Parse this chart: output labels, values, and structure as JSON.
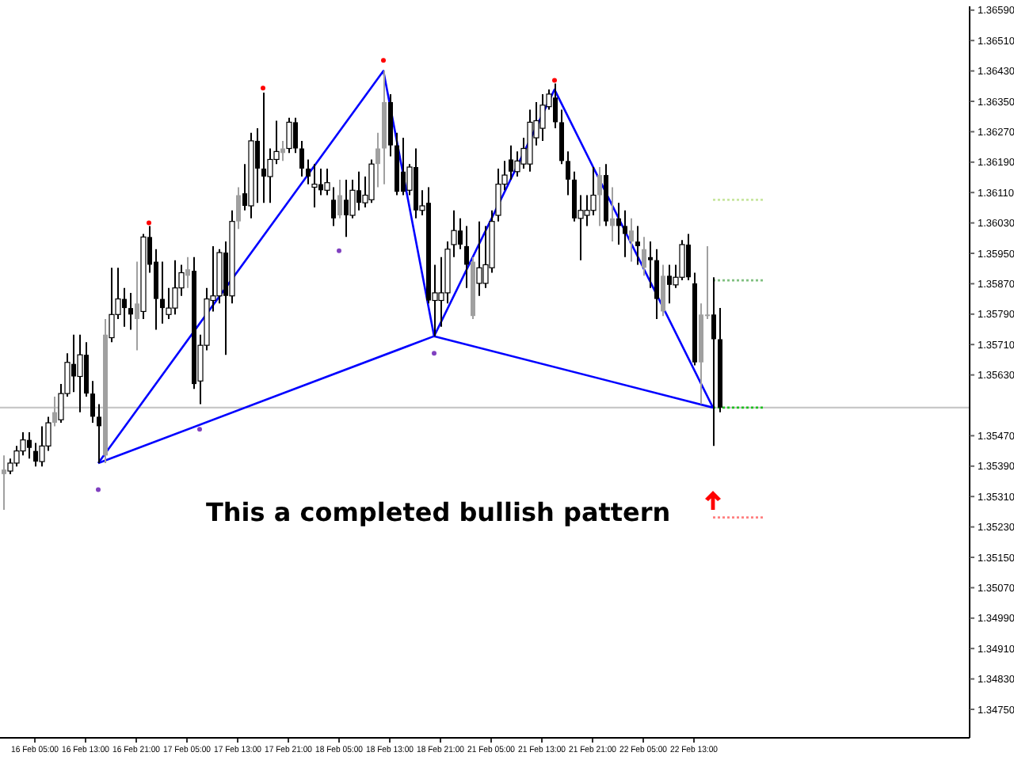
{
  "chart_data": {
    "type": "candlestick",
    "categories": [
      null,
      null,
      null,
      null,
      null,
      "16 Feb 05:00",
      null,
      null,
      null,
      null,
      null,
      null,
      null,
      "16 Feb 13:00",
      null,
      null,
      null,
      null,
      null,
      null,
      null,
      "16 Feb 21:00",
      null,
      null,
      null,
      null,
      null,
      null,
      null,
      "17 Feb 05:00",
      null,
      null,
      null,
      null,
      null,
      null,
      null,
      "17 Feb 13:00",
      null,
      null,
      null,
      null,
      null,
      null,
      null,
      "17 Feb 21:00",
      null,
      null,
      null,
      null,
      null,
      null,
      null,
      "18 Feb 05:00",
      null,
      null,
      null,
      null,
      null,
      null,
      null,
      "18 Feb 13:00",
      null,
      null,
      null,
      null,
      null,
      null,
      null,
      "18 Feb 21:00",
      null,
      null,
      null,
      null,
      null,
      null,
      null,
      "21 Feb 05:00",
      null,
      null,
      null,
      null,
      null,
      null,
      null,
      "21 Feb 13:00",
      null,
      null,
      null,
      null,
      null,
      null,
      null,
      "21 Feb 21:00",
      null,
      null,
      null,
      null,
      null,
      null,
      null,
      "22 Feb 05:00",
      null,
      null,
      null,
      null,
      null,
      null,
      null,
      "22 Feb 13:00",
      null,
      null,
      null,
      null,
      null,
      null,
      null,
      null,
      null,
      null,
      null,
      null,
      null,
      null,
      null,
      null,
      null,
      null,
      null,
      null,
      null,
      null,
      null,
      null,
      null,
      null,
      null,
      null,
      null,
      null,
      null,
      null,
      null,
      null,
      null,
      null,
      null,
      null,
      null,
      null,
      null,
      null,
      null
    ],
    "ohlc": [
      [
        1.35369,
        1.35418,
        1.35275,
        1.35381
      ],
      [
        1.35377,
        1.3541,
        1.35369,
        1.35398
      ],
      [
        1.35398,
        1.35443,
        1.35389,
        1.3543
      ],
      [
        1.3543,
        1.35479,
        1.35418,
        1.35459
      ],
      [
        1.35459,
        1.35479,
        1.3541,
        1.35438
      ],
      [
        1.3543,
        1.35451,
        1.35389,
        1.35402
      ],
      [
        1.35402,
        1.35495,
        1.35389,
        1.35443
      ],
      [
        1.35443,
        1.3552,
        1.3543,
        1.35504
      ],
      [
        1.35504,
        1.35573,
        1.35495,
        1.35532
      ],
      [
        1.35512,
        1.35606,
        1.35504,
        1.35581
      ],
      [
        1.35581,
        1.35687,
        1.35573,
        1.35663
      ],
      [
        1.35659,
        1.35736,
        1.35585,
        1.35626
      ],
      [
        1.35626,
        1.35736,
        1.35532,
        1.35683
      ],
      [
        1.35683,
        1.35716,
        1.35573,
        1.35581
      ],
      [
        1.35581,
        1.35614,
        1.35504,
        1.3552
      ],
      [
        1.3552,
        1.35553,
        1.35398,
        1.35495
      ],
      [
        1.35418,
        1.35777,
        1.35398,
        1.35736
      ],
      [
        1.35728,
        1.35912,
        1.35716,
        1.35789
      ],
      [
        1.35789,
        1.35912,
        1.35777,
        1.3583
      ],
      [
        1.3583,
        1.35859,
        1.35757,
        1.35806
      ],
      [
        1.35806,
        1.35846,
        1.35749,
        1.35789
      ],
      [
        1.35777,
        1.35928,
        1.35695,
        1.35818
      ],
      [
        1.35797,
        1.36001,
        1.35777,
        1.35993
      ],
      [
        1.35993,
        1.36022,
        1.35899,
        1.3592
      ],
      [
        1.35928,
        1.35961,
        1.35749,
        1.3583
      ],
      [
        1.3583,
        1.35928,
        1.35765,
        1.35806
      ],
      [
        1.35789,
        1.35859,
        1.35777,
        1.35806
      ],
      [
        1.35806,
        1.35932,
        1.35789,
        1.35859
      ],
      [
        1.35859,
        1.3592,
        1.35838,
        1.35899
      ],
      [
        1.35891,
        1.3594,
        1.35859,
        1.35908
      ],
      [
        1.35904,
        1.3594,
        1.35593,
        1.35606
      ],
      [
        1.35614,
        1.35736,
        1.35553,
        1.35708
      ],
      [
        1.35708,
        1.35859,
        1.35695,
        1.3583
      ],
      [
        1.35826,
        1.35969,
        1.35797,
        1.35838
      ],
      [
        1.35838,
        1.35961,
        1.35818,
        1.35952
      ],
      [
        1.35952,
        1.35981,
        1.35683,
        1.35838
      ],
      [
        1.35838,
        1.36063,
        1.35818,
        1.36034
      ],
      [
        1.36034,
        1.36124,
        1.36014,
        1.36103
      ],
      [
        1.36108,
        1.36185,
        1.36063,
        1.36075
      ],
      [
        1.36075,
        1.36267,
        1.36042,
        1.36246
      ],
      [
        1.36246,
        1.36279,
        1.36083,
        1.36173
      ],
      [
        1.36173,
        1.36373,
        1.36083,
        1.36152
      ],
      [
        1.36152,
        1.36226,
        1.36083,
        1.36197
      ],
      [
        1.36197,
        1.36299,
        1.36185,
        1.36218
      ],
      [
        1.36214,
        1.36246,
        1.36193,
        1.36226
      ],
      [
        1.36226,
        1.36307,
        1.36214,
        1.36295
      ],
      [
        1.36295,
        1.36307,
        1.36214,
        1.36226
      ],
      [
        1.36226,
        1.36246,
        1.36152,
        1.36173
      ],
      [
        1.36173,
        1.36197,
        1.36132,
        1.36152
      ],
      [
        1.36124,
        1.36185,
        1.36071,
        1.36132
      ],
      [
        1.36132,
        1.36173,
        1.36103,
        1.36116
      ],
      [
        1.36116,
        1.36173,
        1.36103,
        1.36136
      ],
      [
        1.36091,
        1.36124,
        1.36022,
        1.36042
      ],
      [
        1.3605,
        1.36144,
        1.36042,
        1.36103
      ],
      [
        1.36091,
        1.36144,
        1.35993,
        1.3605
      ],
      [
        1.3605,
        1.36144,
        1.36042,
        1.36116
      ],
      [
        1.36116,
        1.36165,
        1.36063,
        1.36083
      ],
      [
        1.36083,
        1.36152,
        1.36071,
        1.36103
      ],
      [
        1.36091,
        1.36197,
        1.36083,
        1.36185
      ],
      [
        1.36185,
        1.36267,
        1.36124,
        1.36226
      ],
      [
        1.36226,
        1.3643,
        1.36132,
        1.36348
      ],
      [
        1.36348,
        1.36369,
        1.36205,
        1.36234
      ],
      [
        1.36234,
        1.36267,
        1.36103,
        1.36112
      ],
      [
        1.36165,
        1.36254,
        1.36103,
        1.36112
      ],
      [
        1.36116,
        1.36185,
        1.36103,
        1.36177
      ],
      [
        1.36177,
        1.36226,
        1.36042,
        1.36063
      ],
      [
        1.36063,
        1.36116,
        1.3605,
        1.36075
      ],
      [
        1.36083,
        1.36124,
        1.35818,
        1.35826
      ],
      [
        1.35826,
        1.3592,
        1.35732,
        1.35846
      ],
      [
        1.35826,
        1.3594,
        1.35757,
        1.35846
      ],
      [
        1.35846,
        1.35981,
        1.35818,
        1.35961
      ],
      [
        1.35973,
        1.36063,
        1.3594,
        1.3601
      ],
      [
        1.3601,
        1.36042,
        1.35961,
        1.35973
      ],
      [
        1.35969,
        1.36022,
        1.35859,
        1.3592
      ],
      [
        1.35785,
        1.3594,
        1.35777,
        1.35928
      ],
      [
        1.35871,
        1.36034,
        1.35838,
        1.35912
      ],
      [
        1.35871,
        1.36022,
        1.35859,
        1.3592
      ],
      [
        1.35912,
        1.36063,
        1.35899,
        1.36034
      ],
      [
        1.3605,
        1.36173,
        1.36034,
        1.36132
      ],
      [
        1.36132,
        1.36193,
        1.36116,
        1.36156
      ],
      [
        1.36197,
        1.36234,
        1.36144,
        1.36165
      ],
      [
        1.36165,
        1.36218,
        1.36152,
        1.36193
      ],
      [
        1.36185,
        1.36254,
        1.36173,
        1.36226
      ],
      [
        1.36185,
        1.36328,
        1.36165,
        1.36295
      ],
      [
        1.36254,
        1.36348,
        1.36234,
        1.36299
      ],
      [
        1.36279,
        1.36369,
        1.36246,
        1.3634
      ],
      [
        1.36336,
        1.36381,
        1.36328,
        1.36369
      ],
      [
        1.3636,
        1.36397,
        1.36279,
        1.36295
      ],
      [
        1.36295,
        1.36328,
        1.36185,
        1.36193
      ],
      [
        1.36193,
        1.36218,
        1.36103,
        1.36144
      ],
      [
        1.36144,
        1.36165,
        1.36034,
        1.36042
      ],
      [
        1.36042,
        1.36103,
        1.35932,
        1.36063
      ],
      [
        1.3605,
        1.36103,
        1.36022,
        1.36063
      ],
      [
        1.36063,
        1.36177,
        1.3605,
        1.36103
      ],
      [
        1.36103,
        1.36177,
        1.36022,
        1.36156
      ],
      [
        1.36156,
        1.36185,
        1.36022,
        1.36034
      ],
      [
        1.36022,
        1.36124,
        1.35981,
        1.36042
      ],
      [
        1.36042,
        1.36083,
        1.35973,
        1.36022
      ],
      [
        1.36022,
        1.36063,
        1.3594,
        1.36001
      ],
      [
        1.35981,
        1.36042,
        1.35928,
        1.3601
      ],
      [
        1.35981,
        1.36022,
        1.3592,
        1.35969
      ],
      [
        1.35912,
        1.35993,
        1.35891,
        1.35961
      ],
      [
        1.3594,
        1.35981,
        1.35859,
        1.35932
      ],
      [
        1.35932,
        1.35961,
        1.35777,
        1.3583
      ],
      [
        1.35797,
        1.3592,
        1.35785,
        1.35891
      ],
      [
        1.35891,
        1.3592,
        1.35818,
        1.35867
      ],
      [
        1.35867,
        1.3592,
        1.35859,
        1.35887
      ],
      [
        1.35887,
        1.35985,
        1.35879,
        1.35973
      ],
      [
        1.35973,
        1.36001,
        1.35879,
        1.35887
      ],
      [
        1.35871,
        1.35899,
        1.35655,
        1.35663
      ],
      [
        1.35663,
        1.35818,
        1.35553,
        1.35789
      ],
      [
        1.35785,
        1.35969,
        1.35777,
        1.35789
      ],
      [
        1.35789,
        1.35887,
        1.35443,
        1.35724
      ],
      [
        1.35724,
        1.35806,
        1.35532,
        1.35544
      ],
      null,
      null,
      null,
      null,
      null,
      null,
      null,
      null,
      null,
      null,
      null,
      null,
      null,
      null,
      null,
      null,
      null,
      null,
      null,
      null,
      null,
      null,
      null,
      null,
      null,
      null,
      null,
      null,
      null,
      null,
      null,
      null,
      null,
      null,
      null,
      null,
      null,
      null,
      null
    ],
    "colors": [
      "#a0a0a0",
      "#ffffff",
      "#ffffff",
      "#ffffff",
      "#000000",
      "#000000",
      "#ffffff",
      "#ffffff",
      "#a0a0a0",
      "#ffffff",
      "#ffffff",
      "#000000",
      "#ffffff",
      "#000000",
      "#000000",
      "#000000",
      "#a0a0a0",
      "#ffffff",
      "#ffffff",
      "#000000",
      "#000000",
      "#a0a0a0",
      "#ffffff",
      "#000000",
      "#000000",
      "#000000",
      "#ffffff",
      "#ffffff",
      "#ffffff",
      "#a0a0a0",
      "#000000",
      "#ffffff",
      "#ffffff",
      "#ffffff",
      "#ffffff",
      "#000000",
      "#ffffff",
      "#a0a0a0",
      "#000000",
      "#ffffff",
      "#000000",
      "#000000",
      "#ffffff",
      "#ffffff",
      "#a0a0a0",
      "#ffffff",
      "#000000",
      "#000000",
      "#000000",
      "#ffffff",
      "#000000",
      "#ffffff",
      "#000000",
      "#a0a0a0",
      "#000000",
      "#ffffff",
      "#000000",
      "#ffffff",
      "#ffffff",
      "#a0a0a0",
      "#a0a0a0",
      "#000000",
      "#000000",
      "#000000",
      "#ffffff",
      "#000000",
      "#ffffff",
      "#000000",
      "#ffffff",
      "#ffffff",
      "#ffffff",
      "#ffffff",
      "#000000",
      "#000000",
      "#a0a0a0",
      "#ffffff",
      "#ffffff",
      "#ffffff",
      "#ffffff",
      "#ffffff",
      "#000000",
      "#ffffff",
      "#ffffff",
      "#ffffff",
      "#ffffff",
      "#ffffff",
      "#ffffff",
      "#000000",
      "#000000",
      "#000000",
      "#000000",
      "#ffffff",
      "#ffffff",
      "#ffffff",
      "#a0a0a0",
      "#000000",
      "#a0a0a0",
      "#000000",
      "#000000",
      "#a0a0a0",
      "#000000",
      "#a0a0a0",
      "#000000",
      "#000000",
      "#a0a0a0",
      "#000000",
      "#ffffff",
      "#ffffff",
      "#000000",
      "#000000",
      "#a0a0a0",
      "#a0a0a0",
      "#000000",
      "#000000",
      null,
      null,
      null,
      null,
      null,
      null,
      null,
      null,
      null,
      null,
      null,
      null,
      null,
      null,
      null,
      null,
      null,
      null,
      null,
      null,
      null,
      null,
      null,
      null,
      null,
      null,
      null,
      null,
      null,
      null,
      null,
      null,
      null,
      null,
      null,
      null,
      null,
      null,
      null
    ],
    "series": [
      {
        "type": "line",
        "color": "#0000ff",
        "values": [
          null,
          null,
          null,
          null,
          null,
          null,
          null,
          null,
          null,
          null,
          null,
          null,
          null,
          null,
          null,
          1.35398,
          null,
          null,
          null,
          null,
          null,
          null,
          null,
          null,
          null,
          null,
          null,
          null,
          null,
          null,
          null,
          null,
          null,
          null,
          null,
          null,
          null,
          null,
          null,
          null,
          null,
          null,
          null,
          null,
          null,
          null,
          null,
          null,
          null,
          null,
          null,
          null,
          null,
          null,
          null,
          null,
          null,
          null,
          null,
          null,
          1.3643,
          null,
          null,
          null,
          null,
          null,
          null,
          null,
          1.35732,
          null,
          null,
          null,
          null,
          null,
          null,
          null,
          null,
          null,
          null,
          null,
          null,
          null,
          null,
          null,
          null,
          null,
          null,
          1.36381,
          null,
          null,
          null,
          null,
          null,
          null,
          null,
          null,
          null,
          null,
          null,
          null,
          null,
          null,
          null,
          null,
          null,
          null,
          null,
          null,
          null,
          null,
          null,
          null,
          1.35544,
          null,
          null,
          null,
          null,
          null,
          null,
          null,
          null,
          null,
          null,
          null,
          null,
          null,
          null,
          null,
          null,
          null,
          null,
          null,
          null,
          null,
          null,
          null,
          null,
          null,
          null,
          null,
          null,
          null,
          null,
          null,
          null,
          null,
          null,
          null,
          null,
          null,
          null,
          null,
          null
        ]
      },
      {
        "type": "line",
        "color": "#0000ff",
        "values": [
          null,
          null,
          null,
          null,
          null,
          null,
          null,
          null,
          null,
          null,
          null,
          null,
          null,
          null,
          null,
          1.35398,
          null,
          null,
          null,
          null,
          null,
          null,
          null,
          null,
          null,
          null,
          null,
          null,
          null,
          null,
          null,
          null,
          null,
          null,
          null,
          null,
          null,
          null,
          null,
          null,
          null,
          null,
          null,
          null,
          null,
          null,
          null,
          null,
          null,
          null,
          null,
          null,
          null,
          null,
          null,
          null,
          null,
          null,
          null,
          null,
          null,
          null,
          null,
          null,
          null,
          null,
          null,
          null,
          1.35732,
          null,
          null,
          null,
          null,
          null,
          null,
          null,
          null,
          null,
          null,
          null,
          null,
          null,
          null,
          null,
          null,
          null,
          null,
          null,
          null,
          null,
          null,
          null,
          null,
          null,
          null,
          null,
          null,
          null,
          null,
          null,
          null,
          null,
          null,
          null,
          null,
          null,
          null,
          null,
          null,
          null,
          null,
          null,
          1.35544,
          null,
          null,
          null,
          null,
          null,
          null,
          null,
          null,
          null,
          null,
          null,
          null,
          null,
          null,
          null,
          null,
          null,
          null,
          null,
          null,
          null,
          null,
          null,
          null,
          null,
          null,
          null,
          null,
          null,
          null,
          null,
          null,
          null,
          null,
          null,
          null,
          null,
          null,
          null,
          null
        ]
      },
      {
        "type": "scatter",
        "color": "#ff0000",
        "marker": "circle",
        "values": [
          null,
          null,
          null,
          null,
          null,
          null,
          null,
          null,
          null,
          null,
          null,
          null,
          null,
          null,
          null,
          null,
          null,
          null,
          null,
          null,
          null,
          null,
          null,
          1.3603,
          null,
          null,
          null,
          null,
          null,
          null,
          null,
          null,
          null,
          null,
          null,
          null,
          null,
          null,
          null,
          null,
          null,
          1.36385,
          null,
          null,
          null,
          null,
          null,
          null,
          null,
          null,
          null,
          null,
          null,
          null,
          null,
          null,
          null,
          null,
          null,
          null,
          1.36458,
          null,
          null,
          null,
          null,
          null,
          null,
          null,
          null,
          null,
          null,
          null,
          null,
          null,
          null,
          null,
          null,
          null,
          null,
          null,
          null,
          null,
          null,
          null,
          null,
          null,
          null,
          1.36405,
          null,
          null,
          null,
          null,
          null,
          null,
          null,
          null,
          null,
          null,
          null,
          null,
          null,
          null,
          null,
          null,
          null,
          null,
          null,
          null,
          null,
          null,
          null,
          null,
          null,
          null,
          null,
          null,
          null,
          null,
          null,
          null,
          null,
          null,
          null,
          null,
          null,
          null,
          null,
          null,
          null,
          null,
          null,
          null,
          null,
          null,
          null,
          null,
          null,
          null,
          null,
          null,
          null,
          null,
          null,
          null,
          null,
          null,
          null,
          null,
          null,
          null,
          null,
          null,
          null
        ]
      },
      {
        "type": "scatter",
        "color": "#8040c0",
        "marker": "circle",
        "values": [
          null,
          null,
          null,
          null,
          null,
          null,
          null,
          null,
          null,
          null,
          null,
          null,
          null,
          null,
          null,
          1.35328,
          null,
          null,
          null,
          null,
          null,
          null,
          null,
          null,
          null,
          null,
          null,
          null,
          null,
          null,
          null,
          1.35487,
          null,
          null,
          null,
          null,
          null,
          null,
          null,
          null,
          null,
          null,
          null,
          null,
          null,
          null,
          null,
          null,
          null,
          null,
          null,
          null,
          null,
          1.35957,
          null,
          null,
          null,
          null,
          null,
          null,
          null,
          null,
          null,
          null,
          null,
          null,
          null,
          null,
          1.35687,
          null,
          null,
          null,
          null,
          null,
          null,
          null,
          null,
          null,
          null,
          null,
          null,
          null,
          null,
          null,
          null,
          null,
          null,
          null,
          null,
          null,
          null,
          null,
          null,
          null,
          null,
          null,
          null,
          null,
          null,
          null,
          null,
          null,
          null,
          null,
          null,
          null,
          null,
          null,
          null,
          null,
          null,
          null,
          null,
          null,
          null,
          null,
          null,
          null,
          null,
          null,
          null,
          null,
          null,
          null,
          null,
          null,
          null,
          null,
          null,
          null,
          null,
          null,
          null,
          null,
          null,
          null,
          null,
          null,
          null,
          null,
          null,
          null,
          null,
          null,
          null,
          null,
          null,
          null,
          null,
          null,
          null,
          null,
          null
        ]
      },
      {
        "type": "line",
        "color": "#c8e6a0",
        "line_style": "dotted",
        "values": [
          null,
          null,
          null,
          null,
          null,
          null,
          null,
          null,
          null,
          null,
          null,
          null,
          null,
          null,
          null,
          null,
          null,
          null,
          null,
          null,
          null,
          null,
          null,
          null,
          null,
          null,
          null,
          null,
          null,
          null,
          null,
          null,
          null,
          null,
          null,
          null,
          null,
          null,
          null,
          null,
          null,
          null,
          null,
          null,
          null,
          null,
          null,
          null,
          null,
          null,
          null,
          null,
          null,
          null,
          null,
          null,
          null,
          null,
          null,
          null,
          null,
          null,
          null,
          null,
          null,
          null,
          null,
          null,
          null,
          null,
          null,
          null,
          null,
          null,
          null,
          null,
          null,
          null,
          null,
          null,
          null,
          null,
          null,
          null,
          null,
          null,
          null,
          null,
          null,
          null,
          null,
          null,
          null,
          null,
          null,
          null,
          null,
          null,
          null,
          null,
          null,
          null,
          null,
          null,
          null,
          null,
          null,
          null,
          null,
          null,
          null,
          null,
          1.36091,
          1.36091,
          1.36091,
          1.36091,
          1.36091,
          1.36091,
          1.36091,
          1.36091,
          1.36091,
          null,
          null,
          null,
          null,
          null,
          null,
          null,
          null,
          null,
          null,
          null,
          null,
          null,
          null,
          null,
          null,
          null,
          null,
          null,
          null,
          null,
          null,
          null,
          null,
          null,
          null,
          null,
          null,
          null,
          null,
          null,
          null
        ]
      },
      {
        "type": "line",
        "color": "#80c080",
        "line_style": "dotted",
        "values": [
          null,
          null,
          null,
          null,
          null,
          null,
          null,
          null,
          null,
          null,
          null,
          null,
          null,
          null,
          null,
          null,
          null,
          null,
          null,
          null,
          null,
          null,
          null,
          null,
          null,
          null,
          null,
          null,
          null,
          null,
          null,
          null,
          null,
          null,
          null,
          null,
          null,
          null,
          null,
          null,
          null,
          null,
          null,
          null,
          null,
          null,
          null,
          null,
          null,
          null,
          null,
          null,
          null,
          null,
          null,
          null,
          null,
          null,
          null,
          null,
          null,
          null,
          null,
          null,
          null,
          null,
          null,
          null,
          null,
          null,
          null,
          null,
          null,
          null,
          null,
          null,
          null,
          null,
          null,
          null,
          null,
          null,
          null,
          null,
          null,
          null,
          null,
          null,
          null,
          null,
          null,
          null,
          null,
          null,
          null,
          null,
          null,
          null,
          null,
          null,
          null,
          null,
          null,
          null,
          null,
          null,
          null,
          null,
          null,
          null,
          null,
          null,
          1.35879,
          1.35879,
          1.35879,
          1.35879,
          1.35879,
          1.35879,
          1.35879,
          1.35879,
          1.35879,
          null,
          null,
          null,
          null,
          null,
          null,
          null,
          null,
          null,
          null,
          null,
          null,
          null,
          null,
          null,
          null,
          null,
          null,
          null,
          null,
          null,
          null,
          null,
          null,
          null,
          null,
          null,
          null,
          null,
          null,
          null,
          null
        ]
      },
      {
        "type": "line",
        "color": "#20c020",
        "line_style": "dotted",
        "values": [
          null,
          null,
          null,
          null,
          null,
          null,
          null,
          null,
          null,
          null,
          null,
          null,
          null,
          null,
          null,
          null,
          null,
          null,
          null,
          null,
          null,
          null,
          null,
          null,
          null,
          null,
          null,
          null,
          null,
          null,
          null,
          null,
          null,
          null,
          null,
          null,
          null,
          null,
          null,
          null,
          null,
          null,
          null,
          null,
          null,
          null,
          null,
          null,
          null,
          null,
          null,
          null,
          null,
          null,
          null,
          null,
          null,
          null,
          null,
          null,
          null,
          null,
          null,
          null,
          null,
          null,
          null,
          null,
          null,
          null,
          null,
          null,
          null,
          null,
          null,
          null,
          null,
          null,
          null,
          null,
          null,
          null,
          null,
          null,
          null,
          null,
          null,
          null,
          null,
          null,
          null,
          null,
          null,
          null,
          null,
          null,
          null,
          null,
          null,
          null,
          null,
          null,
          null,
          null,
          null,
          null,
          null,
          null,
          null,
          null,
          null,
          null,
          1.35544,
          1.35544,
          1.35544,
          1.35544,
          1.35544,
          1.35544,
          1.35544,
          1.35544,
          1.35544,
          null,
          null,
          null,
          null,
          null,
          null,
          null,
          null,
          null,
          null,
          null,
          null,
          null,
          null,
          null,
          null,
          null,
          null,
          null,
          null,
          null,
          null,
          null,
          null,
          null,
          null,
          null,
          null,
          null,
          null,
          null,
          null
        ]
      },
      {
        "type": "line",
        "color": "#ff8080",
        "line_style": "dotted",
        "values": [
          null,
          null,
          null,
          null,
          null,
          null,
          null,
          null,
          null,
          null,
          null,
          null,
          null,
          null,
          null,
          null,
          null,
          null,
          null,
          null,
          null,
          null,
          null,
          null,
          null,
          null,
          null,
          null,
          null,
          null,
          null,
          null,
          null,
          null,
          null,
          null,
          null,
          null,
          null,
          null,
          null,
          null,
          null,
          null,
          null,
          null,
          null,
          null,
          null,
          null,
          null,
          null,
          null,
          null,
          null,
          null,
          null,
          null,
          null,
          null,
          null,
          null,
          null,
          null,
          null,
          null,
          null,
          null,
          null,
          null,
          null,
          null,
          null,
          null,
          null,
          null,
          null,
          null,
          null,
          null,
          null,
          null,
          null,
          null,
          null,
          null,
          null,
          null,
          null,
          null,
          null,
          null,
          null,
          null,
          null,
          null,
          null,
          null,
          null,
          null,
          null,
          null,
          null,
          null,
          null,
          null,
          null,
          null,
          null,
          null,
          null,
          null,
          1.35255,
          1.35255,
          1.35255,
          1.35255,
          1.35255,
          1.35255,
          1.35255,
          1.35255,
          1.35255,
          null,
          null,
          null,
          null,
          null,
          null,
          null,
          null,
          null,
          null,
          null,
          null,
          null,
          null,
          null,
          null,
          null,
          null,
          null,
          null,
          null,
          null,
          null,
          null,
          null,
          null,
          null,
          null,
          null,
          null,
          null,
          null
        ]
      }
    ],
    "ylim": [
      1.34675,
      1.366
    ],
    "yticks": [
      {
        "value": 1.3659,
        "label": "1.36590"
      },
      {
        "value": 1.3651,
        "label": "1.36510"
      },
      {
        "value": 1.3643,
        "label": "1.36430"
      },
      {
        "value": 1.3635,
        "label": "1.36350"
      },
      {
        "value": 1.3627,
        "label": "1.36270"
      },
      {
        "value": 1.3619,
        "label": "1.36190"
      },
      {
        "value": 1.3611,
        "label": "1.36110"
      },
      {
        "value": 1.3603,
        "label": "1.36030"
      },
      {
        "value": 1.3595,
        "label": "1.35950"
      },
      {
        "value": 1.3587,
        "label": "1.35870"
      },
      {
        "value": 1.3579,
        "label": "1.35790"
      },
      {
        "value": 1.3571,
        "label": "1.35710"
      },
      {
        "value": 1.3563,
        "label": "1.35630"
      },
      {
        "value": 1.3547,
        "label": "1.35470"
      },
      {
        "value": 1.3539,
        "label": "1.35390"
      },
      {
        "value": 1.3531,
        "label": "1.35310"
      },
      {
        "value": 1.3523,
        "label": "1.35230"
      },
      {
        "value": 1.3515,
        "label": "1.35150"
      },
      {
        "value": 1.3507,
        "label": "1.35070"
      },
      {
        "value": 1.3499,
        "label": "1.34990"
      },
      {
        "value": 1.3491,
        "label": "1.34910"
      },
      {
        "value": 1.3483,
        "label": "1.34830"
      },
      {
        "value": 1.3475,
        "label": "1.34750"
      }
    ],
    "ref_lines": [
      {
        "axis": "y",
        "value": 1.35544,
        "color": "#c8c8c8"
      }
    ],
    "annotations": [
      "This a completed bullish pattern"
    ]
  }
}
